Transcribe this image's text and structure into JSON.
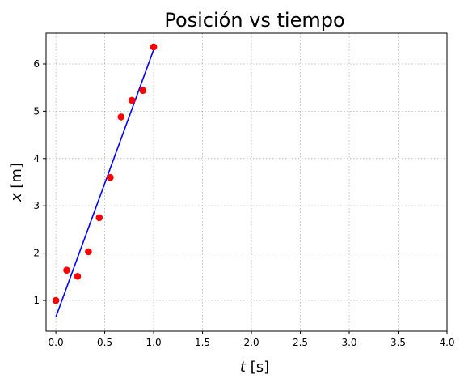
{
  "chart_data": {
    "type": "scatter",
    "title": "Posición vs tiempo",
    "xlabel": {
      "symbol": "t",
      "unit": "[s]"
    },
    "ylabel": {
      "symbol": "x",
      "unit": "[m]"
    },
    "xlim": [
      -0.1,
      4.0
    ],
    "ylim": [
      0.35,
      6.65
    ],
    "xticks": [
      0.0,
      0.5,
      1.0,
      1.5,
      2.0,
      2.5,
      3.0,
      3.5,
      4.0
    ],
    "xtick_labels": [
      "0.0",
      "0.5",
      "1.0",
      "1.5",
      "2.0",
      "2.5",
      "3.0",
      "3.5",
      "4.0"
    ],
    "yticks": [
      1,
      2,
      3,
      4,
      5,
      6
    ],
    "ytick_labels": [
      "1",
      "2",
      "3",
      "4",
      "5",
      "6"
    ],
    "grid": true,
    "grid_style": "dotted",
    "series": [
      {
        "kind": "scatter",
        "color": "#ff0000",
        "x": [
          0.0,
          0.111,
          0.222,
          0.333,
          0.444,
          0.556,
          0.667,
          0.778,
          0.889,
          1.0
        ],
        "y": [
          1.0,
          1.64,
          1.51,
          2.03,
          2.75,
          3.6,
          4.88,
          5.23,
          5.44,
          6.36
        ]
      },
      {
        "kind": "line",
        "color": "#0000ff",
        "x": [
          0.0,
          1.0
        ],
        "y": [
          0.65,
          6.3
        ]
      }
    ]
  }
}
